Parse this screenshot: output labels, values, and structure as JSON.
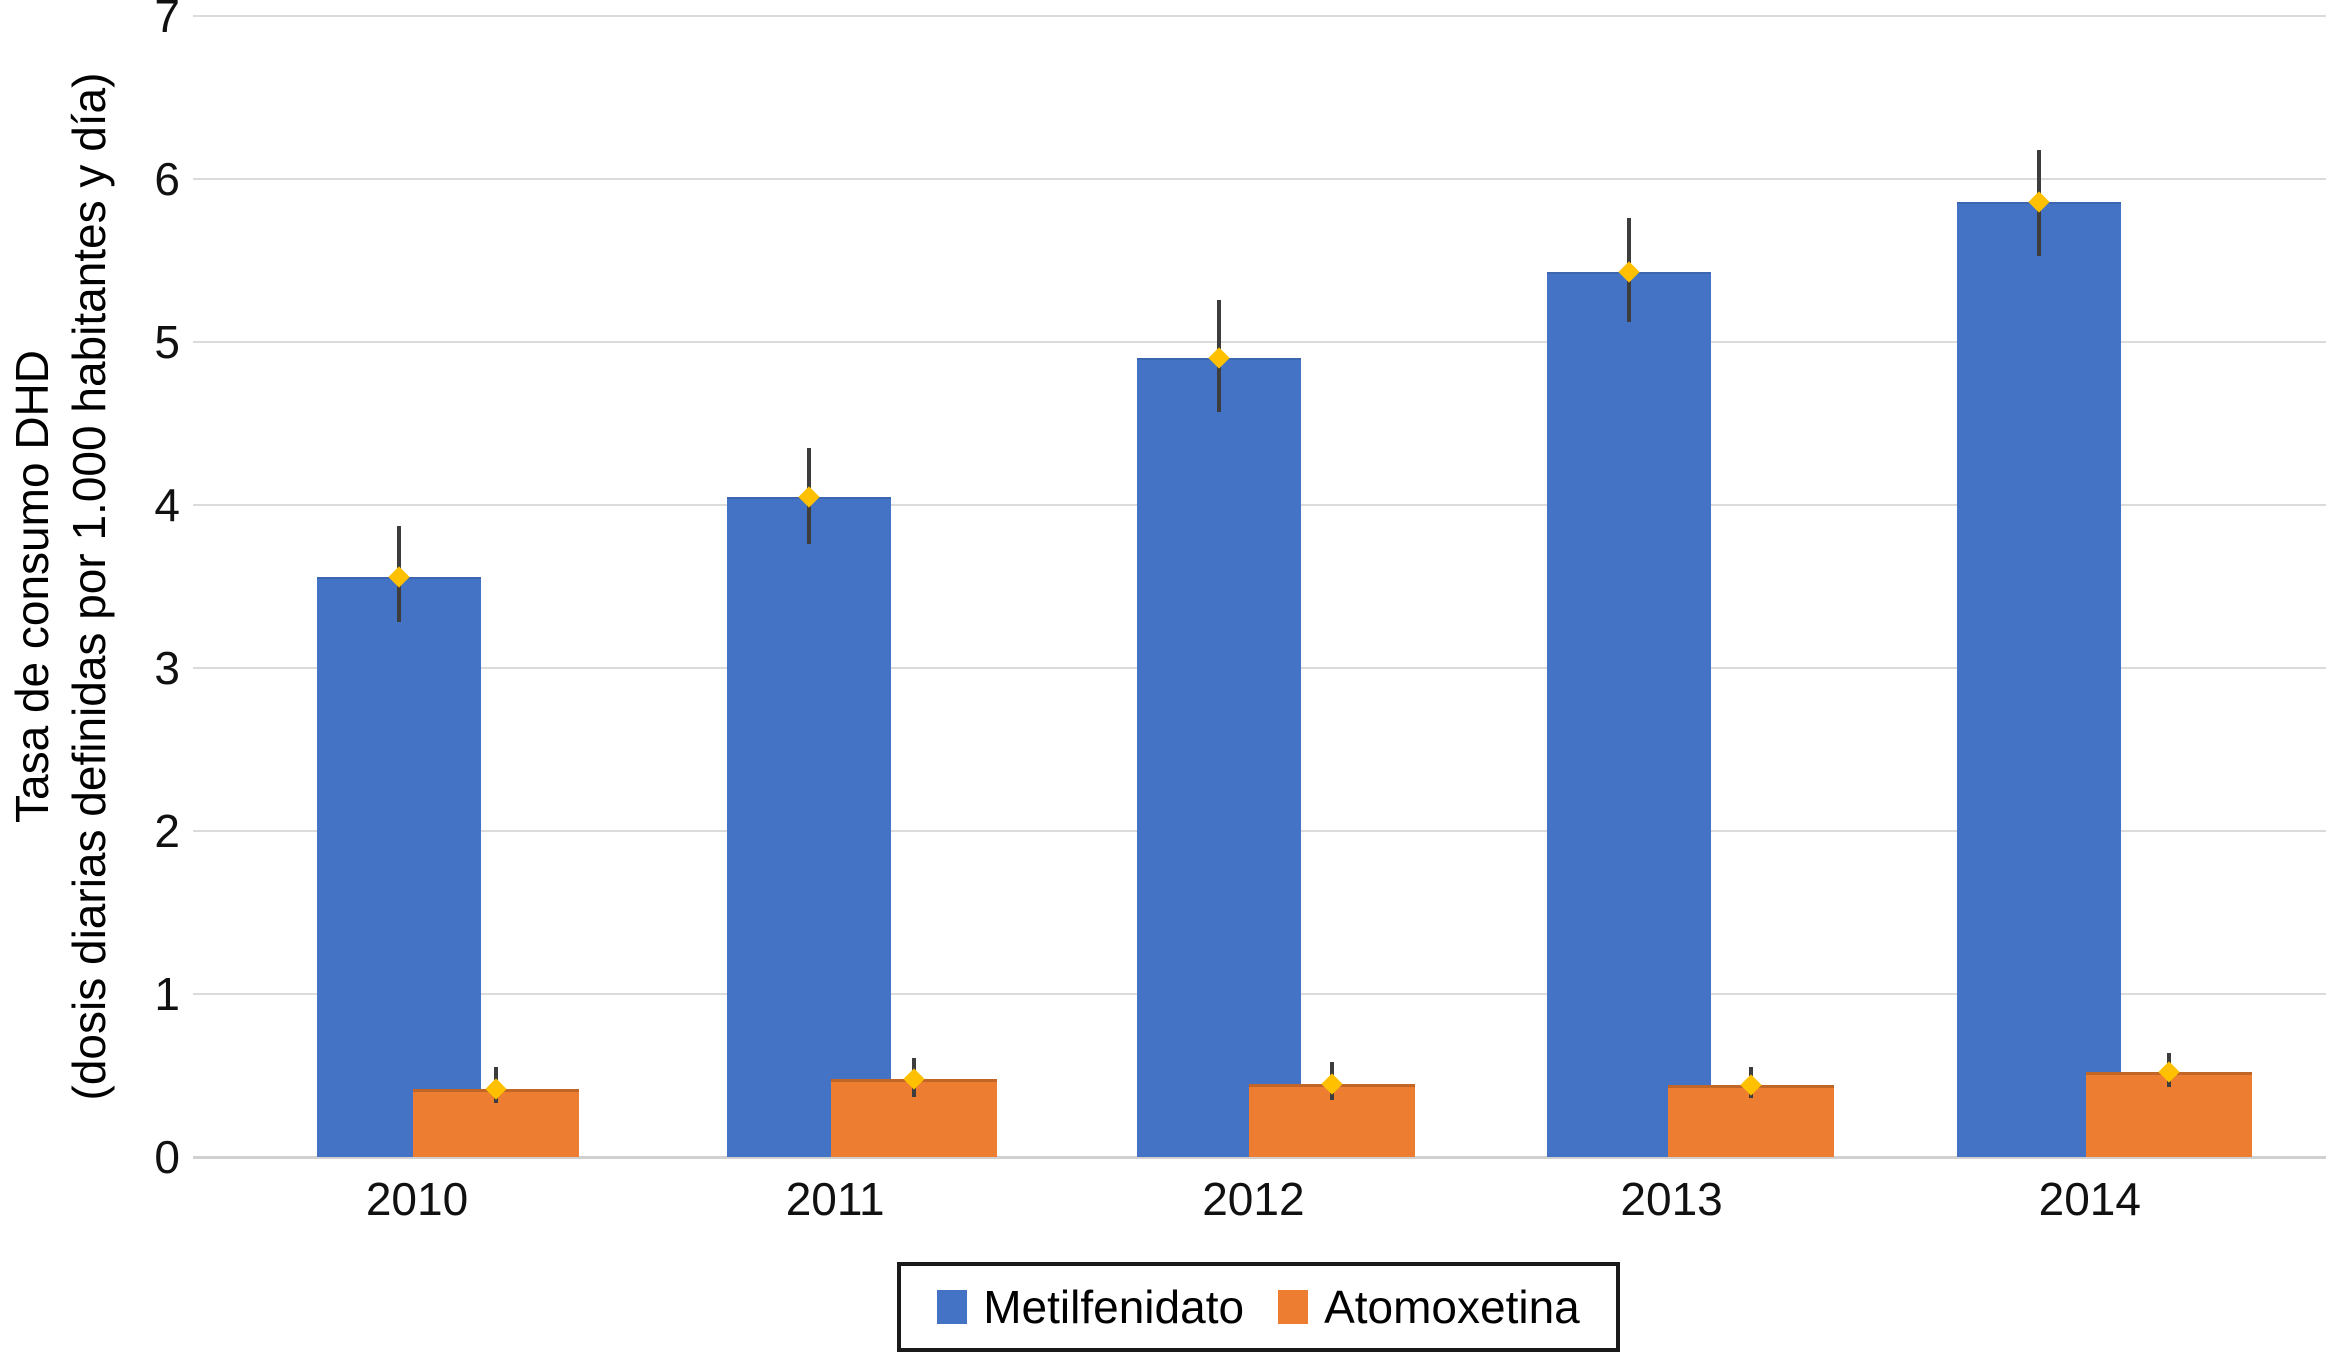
{
  "figure": {
    "background": "#ffffff"
  },
  "chart_data": {
    "type": "bar",
    "title": "",
    "categories": [
      "2010",
      "2011",
      "2012",
      "2013",
      "2014"
    ],
    "series": [
      {
        "name": "Metilfenidato",
        "color": "#4472C4",
        "values": [
          3.56,
          4.05,
          4.9,
          5.43,
          5.86
        ],
        "error_low": [
          3.28,
          3.76,
          4.57,
          5.12,
          5.53
        ],
        "error_high": [
          3.87,
          4.35,
          5.26,
          5.76,
          6.18
        ]
      },
      {
        "name": "Atomoxetina",
        "color": "#ED7D31",
        "values": [
          0.42,
          0.48,
          0.45,
          0.44,
          0.52
        ],
        "error_low": [
          0.33,
          0.37,
          0.35,
          0.36,
          0.43
        ],
        "error_high": [
          0.55,
          0.61,
          0.58,
          0.55,
          0.64
        ]
      }
    ],
    "ylabel_line1": "Tasa de consumo DHD",
    "ylabel_line2": "(dosis diarias definidas por 1.000 habitantes y día)",
    "xlabel": "",
    "ylim": [
      0,
      7
    ],
    "yticks": [
      0,
      1,
      2,
      3,
      4,
      5,
      6,
      7
    ],
    "grid": true,
    "legend_position": "bottom",
    "error_bars": true,
    "marker_shape": "diamond",
    "marker_color": "#FFC000",
    "error_bar_color": "#3d3d3d",
    "gridline_color": "#dbdbdb",
    "text_color": "#111111"
  },
  "legend": {
    "items": [
      {
        "label": "Metilfenidato",
        "color": "#4472C4"
      },
      {
        "label": "Atomoxetina",
        "color": "#ED7D31"
      }
    ]
  }
}
